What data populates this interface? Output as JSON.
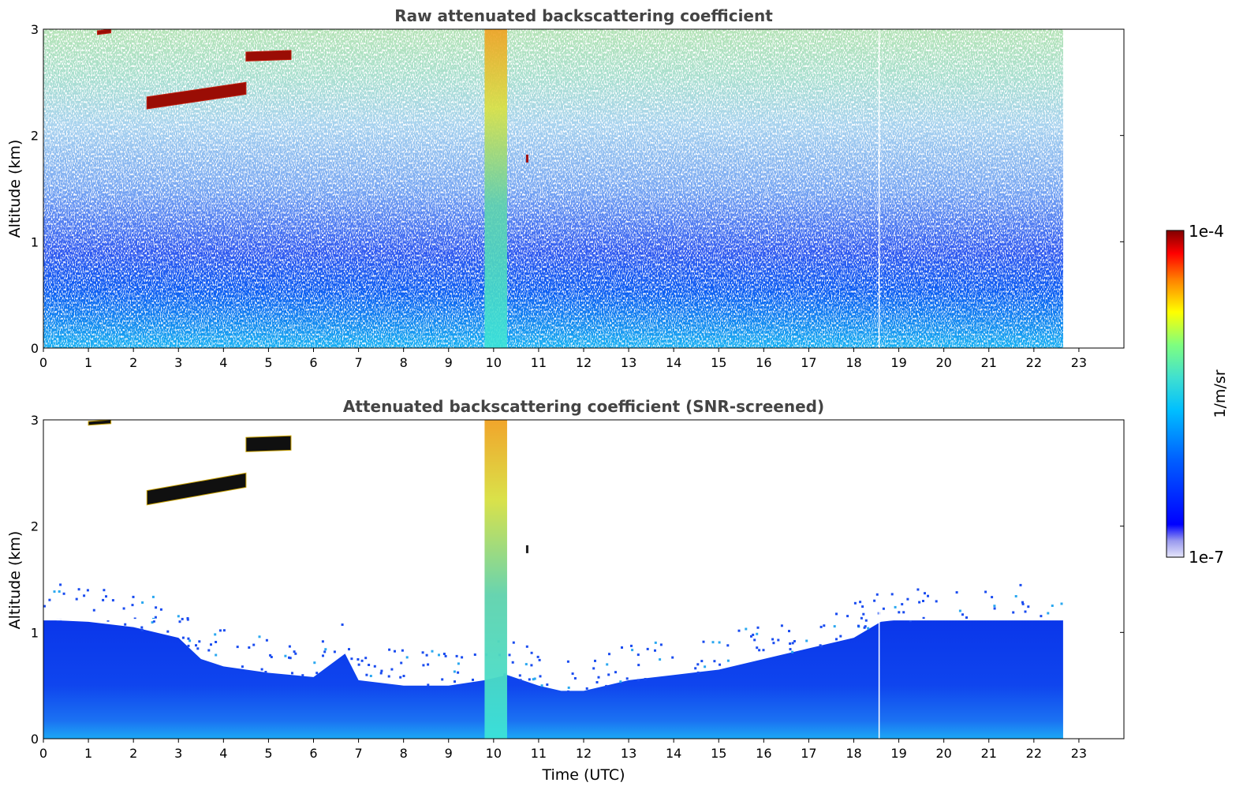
{
  "figure": {
    "colorbar": {
      "label": "1/m/sr",
      "max_label": "1e-4",
      "min_label": "1e-7",
      "scale": "log",
      "range": [
        1e-07,
        0.0001
      ],
      "colormap": [
        "#e6e6fa",
        "#9999ee",
        "#0000ff",
        "#0060ff",
        "#00bfff",
        "#40e0d0",
        "#7fff7f",
        "#ffff00",
        "#ff8000",
        "#ff0000",
        "#800000"
      ]
    },
    "xlabel": "Time (UTC)"
  },
  "chart_data": [
    {
      "type": "heatmap",
      "title": "Raw attenuated backscattering coefficient",
      "xlabel": "",
      "ylabel": "Altitude (km)",
      "xlim": [
        0,
        24
      ],
      "ylim": [
        0,
        3
      ],
      "xticks": [
        "0",
        "1",
        "2",
        "3",
        "4",
        "5",
        "6",
        "7",
        "8",
        "9",
        "10",
        "11",
        "12",
        "13",
        "14",
        "15",
        "16",
        "17",
        "18",
        "19",
        "20",
        "21",
        "22",
        "23"
      ],
      "yticks": [
        "0",
        "1",
        "2",
        "3"
      ],
      "data_end_time_utc": 22.65,
      "features": [
        {
          "kind": "aerosol_layer",
          "time_utc": [
            0,
            22.65
          ],
          "altitude_km": [
            0,
            0.6
          ],
          "level": "1e-6 to 4e-6"
        },
        {
          "kind": "cloud",
          "time_utc": [
            2.3,
            4.5
          ],
          "altitude_km": [
            2.25,
            2.5
          ],
          "level": "1e-4"
        },
        {
          "kind": "cloud",
          "time_utc": [
            4.5,
            5.5
          ],
          "altitude_km": [
            2.7,
            2.8
          ],
          "level": "1e-4"
        },
        {
          "kind": "cloud",
          "time_utc": [
            1.2,
            1.5
          ],
          "altitude_km": [
            2.95,
            3.0
          ],
          "level": "1e-4"
        },
        {
          "kind": "precipitation_column",
          "time_utc": [
            9.8,
            10.3
          ],
          "altitude_km": [
            0,
            3
          ],
          "level": "1e-5 to 3e-5"
        },
        {
          "kind": "data_gap",
          "time_utc": [
            18.55,
            18.57
          ],
          "altitude_km": [
            0,
            3
          ]
        }
      ]
    },
    {
      "type": "heatmap",
      "title": "Attenuated backscattering coefficient (SNR-screened)",
      "xlabel": "Time (UTC)",
      "ylabel": "Altitude (km)",
      "xlim": [
        0,
        24
      ],
      "ylim": [
        0,
        3
      ],
      "xticks": [
        "0",
        "1",
        "2",
        "3",
        "4",
        "5",
        "6",
        "7",
        "8",
        "9",
        "10",
        "11",
        "12",
        "13",
        "14",
        "15",
        "16",
        "17",
        "18",
        "19",
        "20",
        "21",
        "22",
        "23"
      ],
      "yticks": [
        "0",
        "1",
        "2",
        "3"
      ],
      "data_end_time_utc": 22.65,
      "boundary_layer_top_km": {
        "time_utc": [
          0,
          1,
          2,
          3,
          3.5,
          4,
          5,
          6,
          6.7,
          7,
          8,
          9,
          9.8,
          10.3,
          11,
          11.5,
          12,
          13,
          14,
          15,
          16,
          17,
          18,
          18.6,
          19,
          20,
          21,
          22,
          22.65
        ],
        "altitude_km": [
          1.12,
          1.1,
          1.05,
          0.95,
          0.75,
          0.68,
          0.62,
          0.58,
          0.8,
          0.55,
          0.5,
          0.5,
          0.55,
          0.6,
          0.5,
          0.45,
          0.45,
          0.55,
          0.6,
          0.65,
          0.75,
          0.85,
          0.95,
          1.1,
          1.12,
          1.12,
          1.12,
          1.12,
          1.12
        ]
      },
      "features": [
        {
          "kind": "cloud",
          "time_utc": [
            2.3,
            4.5
          ],
          "altitude_km": [
            2.2,
            2.5
          ],
          "level": "saturated"
        },
        {
          "kind": "cloud",
          "time_utc": [
            4.5,
            5.5
          ],
          "altitude_km": [
            2.7,
            2.85
          ],
          "level": "saturated"
        },
        {
          "kind": "cloud",
          "time_utc": [
            1.0,
            1.5
          ],
          "altitude_km": [
            2.95,
            3.0
          ],
          "level": "saturated"
        },
        {
          "kind": "precipitation_column",
          "time_utc": [
            9.8,
            10.3
          ],
          "altitude_km": [
            0,
            3
          ],
          "level": "1e-5 to 3e-5"
        },
        {
          "kind": "data_gap",
          "time_utc": [
            18.55,
            18.57
          ],
          "altitude_km": [
            0,
            3
          ]
        }
      ]
    }
  ]
}
